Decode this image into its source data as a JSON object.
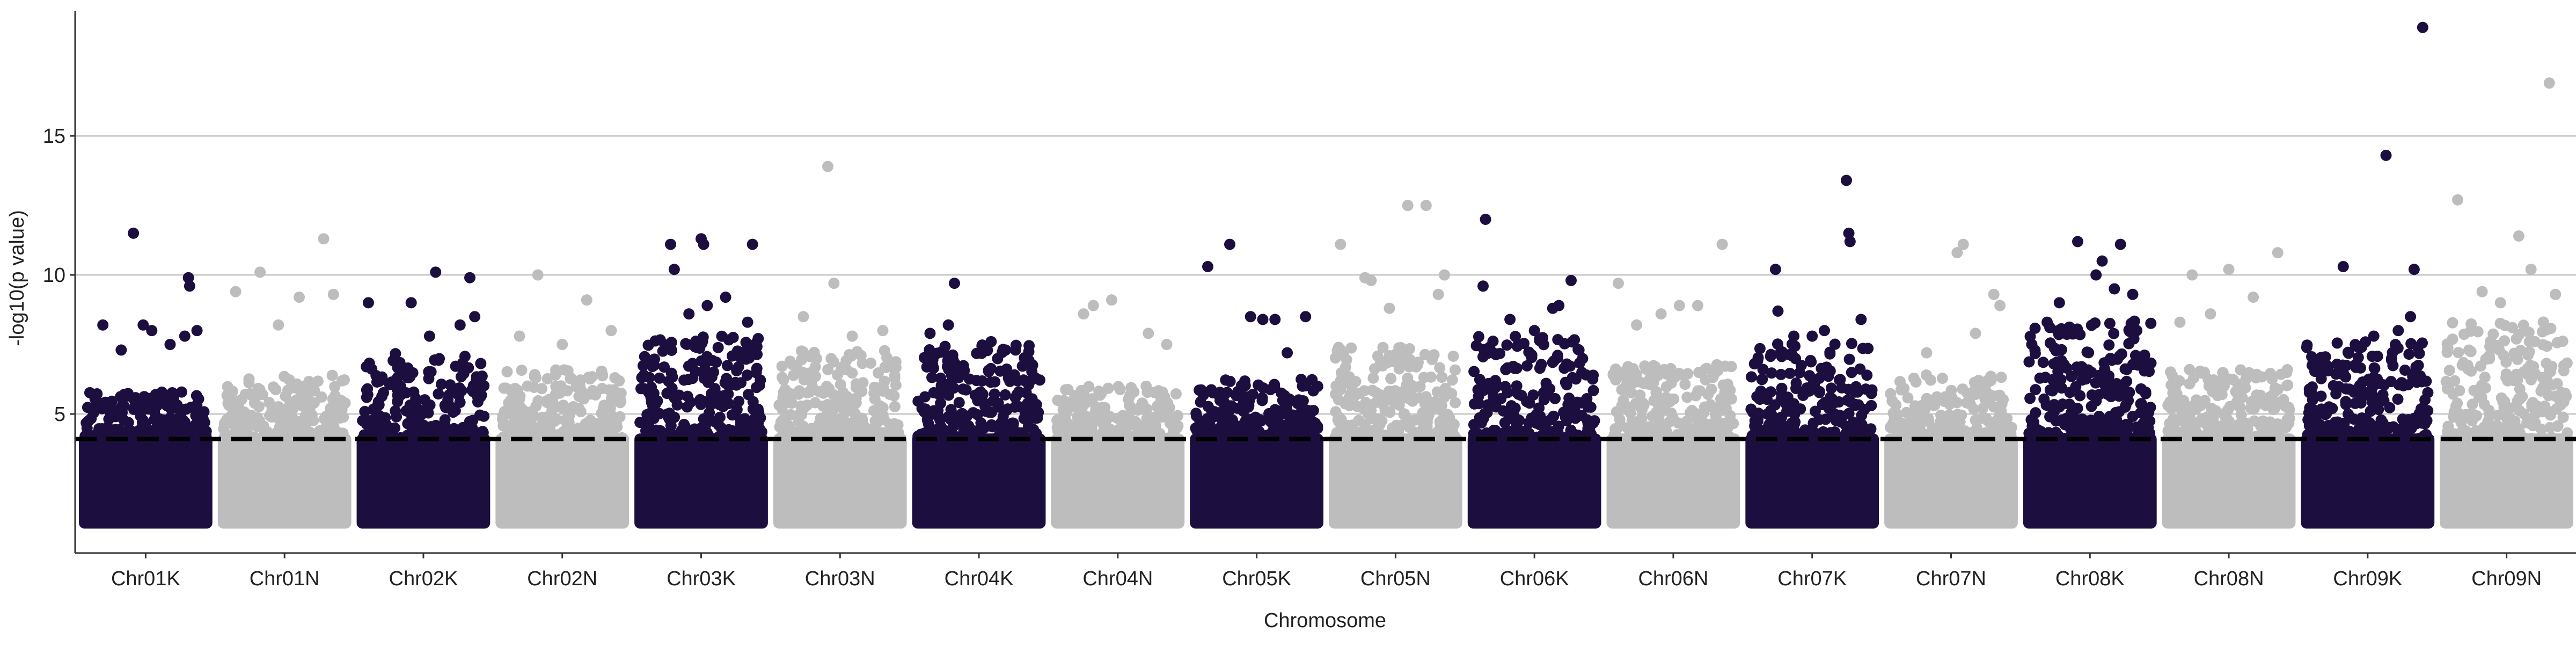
{
  "chart_data": {
    "type": "scatter",
    "subtype": "manhattan",
    "title": "",
    "xlabel": "Chromosome",
    "ylabel": "-log10(p value)",
    "ylim": [
      0,
      19.5
    ],
    "yticks": [
      5,
      10,
      15
    ],
    "grid": "horizontal",
    "legend": "none",
    "threshold": {
      "value": 4.1,
      "style": "dashed",
      "color": "#000000"
    },
    "colors": {
      "odd": "#1c0f40",
      "even": "#bdbdbd",
      "gridline": "#c8c8c8",
      "axis": "#333333"
    },
    "point_floor": 1.0,
    "categories": [
      "Chr01K",
      "Chr01N",
      "Chr02K",
      "Chr02N",
      "Chr03K",
      "Chr03N",
      "Chr04K",
      "Chr04N",
      "Chr05K",
      "Chr05N",
      "Chr06K",
      "Chr06N",
      "Chr07K",
      "Chr07N",
      "Chr08K",
      "Chr08N",
      "Chr09K",
      "Chr09N"
    ],
    "series": [
      {
        "name": "Chr01K",
        "dense_top": 5.8,
        "outliers": [
          [
            0.4,
            11.5
          ],
          [
            0.85,
            9.9
          ],
          [
            0.86,
            9.6
          ],
          [
            0.15,
            8.2
          ],
          [
            0.48,
            8.2
          ],
          [
            0.55,
            8.0
          ],
          [
            0.92,
            8.0
          ],
          [
            0.82,
            7.8
          ],
          [
            0.3,
            7.3
          ],
          [
            0.7,
            7.5
          ]
        ]
      },
      {
        "name": "Chr01N",
        "dense_top": 6.4,
        "outliers": [
          [
            0.3,
            10.1
          ],
          [
            0.82,
            11.3
          ],
          [
            0.1,
            9.4
          ],
          [
            0.62,
            9.2
          ],
          [
            0.9,
            9.3
          ],
          [
            0.45,
            8.2
          ]
        ]
      },
      {
        "name": "Chr02K",
        "dense_top": 7.2,
        "outliers": [
          [
            0.6,
            10.1
          ],
          [
            0.88,
            9.9
          ],
          [
            0.05,
            9.0
          ],
          [
            0.4,
            9.0
          ],
          [
            0.92,
            8.5
          ],
          [
            0.8,
            8.2
          ],
          [
            0.55,
            7.8
          ]
        ]
      },
      {
        "name": "Chr02N",
        "dense_top": 6.6,
        "outliers": [
          [
            0.3,
            10.0
          ],
          [
            0.7,
            9.1
          ],
          [
            0.15,
            7.8
          ],
          [
            0.9,
            8.0
          ],
          [
            0.5,
            7.5
          ]
        ]
      },
      {
        "name": "Chr03K",
        "dense_top": 7.8,
        "outliers": [
          [
            0.25,
            11.1
          ],
          [
            0.5,
            11.3
          ],
          [
            0.52,
            11.1
          ],
          [
            0.92,
            11.1
          ],
          [
            0.28,
            10.2
          ],
          [
            0.7,
            9.2
          ],
          [
            0.55,
            8.9
          ],
          [
            0.4,
            8.6
          ],
          [
            0.88,
            8.3
          ]
        ]
      },
      {
        "name": "Chr03N",
        "dense_top": 7.3,
        "outliers": [
          [
            0.4,
            13.9
          ],
          [
            0.45,
            9.7
          ],
          [
            0.2,
            8.5
          ],
          [
            0.85,
            8.0
          ],
          [
            0.6,
            7.8
          ]
        ]
      },
      {
        "name": "Chr04K",
        "dense_top": 7.5,
        "outliers": [
          [
            0.3,
            9.7
          ],
          [
            0.25,
            8.2
          ],
          [
            0.1,
            7.9
          ],
          [
            0.6,
            7.6
          ],
          [
            0.8,
            7.3
          ]
        ]
      },
      {
        "name": "Chr04N",
        "dense_top": 6.0,
        "outliers": [
          [
            0.45,
            9.1
          ],
          [
            0.3,
            8.9
          ],
          [
            0.22,
            8.6
          ],
          [
            0.75,
            7.9
          ],
          [
            0.9,
            7.5
          ]
        ]
      },
      {
        "name": "Chr05K",
        "dense_top": 6.3,
        "outliers": [
          [
            0.1,
            10.3
          ],
          [
            0.28,
            11.1
          ],
          [
            0.45,
            8.5
          ],
          [
            0.55,
            8.4
          ],
          [
            0.65,
            8.4
          ],
          [
            0.9,
            8.5
          ],
          [
            0.75,
            7.2
          ]
        ]
      },
      {
        "name": "Chr05N",
        "dense_top": 7.4,
        "outliers": [
          [
            0.05,
            11.1
          ],
          [
            0.25,
            9.9
          ],
          [
            0.3,
            9.8
          ],
          [
            0.6,
            12.5
          ],
          [
            0.75,
            12.5
          ],
          [
            0.9,
            10.0
          ],
          [
            0.85,
            9.3
          ],
          [
            0.45,
            8.8
          ]
        ]
      },
      {
        "name": "Chr06K",
        "dense_top": 7.8,
        "outliers": [
          [
            0.1,
            12.0
          ],
          [
            0.08,
            9.6
          ],
          [
            0.65,
            8.8
          ],
          [
            0.7,
            8.9
          ],
          [
            0.8,
            9.8
          ],
          [
            0.3,
            8.4
          ],
          [
            0.5,
            8.0
          ]
        ]
      },
      {
        "name": "Chr06N",
        "dense_top": 6.8,
        "outliers": [
          [
            0.05,
            9.7
          ],
          [
            0.9,
            11.1
          ],
          [
            0.55,
            8.9
          ],
          [
            0.7,
            8.9
          ],
          [
            0.4,
            8.6
          ],
          [
            0.2,
            8.2
          ]
        ]
      },
      {
        "name": "Chr07K",
        "dense_top": 7.6,
        "outliers": [
          [
            0.78,
            13.4
          ],
          [
            0.8,
            11.5
          ],
          [
            0.81,
            11.2
          ],
          [
            0.2,
            10.2
          ],
          [
            0.22,
            8.7
          ],
          [
            0.5,
            7.8
          ],
          [
            0.6,
            8.0
          ],
          [
            0.9,
            8.4
          ],
          [
            0.35,
            7.8
          ]
        ]
      },
      {
        "name": "Chr07N",
        "dense_top": 6.4,
        "outliers": [
          [
            0.55,
            10.8
          ],
          [
            0.6,
            11.1
          ],
          [
            0.85,
            9.3
          ],
          [
            0.9,
            8.9
          ],
          [
            0.3,
            7.2
          ],
          [
            0.7,
            7.9
          ]
        ]
      },
      {
        "name": "Chr08K",
        "dense_top": 8.4,
        "outliers": [
          [
            0.4,
            11.2
          ],
          [
            0.55,
            10.0
          ],
          [
            0.6,
            10.5
          ],
          [
            0.75,
            11.1
          ],
          [
            0.7,
            9.5
          ],
          [
            0.25,
            9.0
          ],
          [
            0.85,
            9.3
          ],
          [
            0.15,
            8.3
          ]
        ]
      },
      {
        "name": "Chr08N",
        "dense_top": 6.6,
        "outliers": [
          [
            0.2,
            10.0
          ],
          [
            0.5,
            10.2
          ],
          [
            0.9,
            10.8
          ],
          [
            0.7,
            9.2
          ],
          [
            0.35,
            8.6
          ],
          [
            0.1,
            8.3
          ]
        ]
      },
      {
        "name": "Chr09K",
        "dense_top": 7.6,
        "outliers": [
          [
            0.95,
            18.9
          ],
          [
            0.65,
            14.3
          ],
          [
            0.3,
            10.3
          ],
          [
            0.88,
            10.2
          ],
          [
            0.85,
            8.5
          ],
          [
            0.75,
            8.0
          ],
          [
            0.55,
            7.8
          ],
          [
            0.45,
            7.4
          ]
        ]
      },
      {
        "name": "Chr09N",
        "dense_top": 8.4,
        "outliers": [
          [
            0.85,
            16.9
          ],
          [
            0.1,
            12.7
          ],
          [
            0.6,
            11.4
          ],
          [
            0.7,
            10.2
          ],
          [
            0.3,
            9.4
          ],
          [
            0.9,
            9.3
          ],
          [
            0.45,
            9.0
          ]
        ]
      }
    ]
  }
}
